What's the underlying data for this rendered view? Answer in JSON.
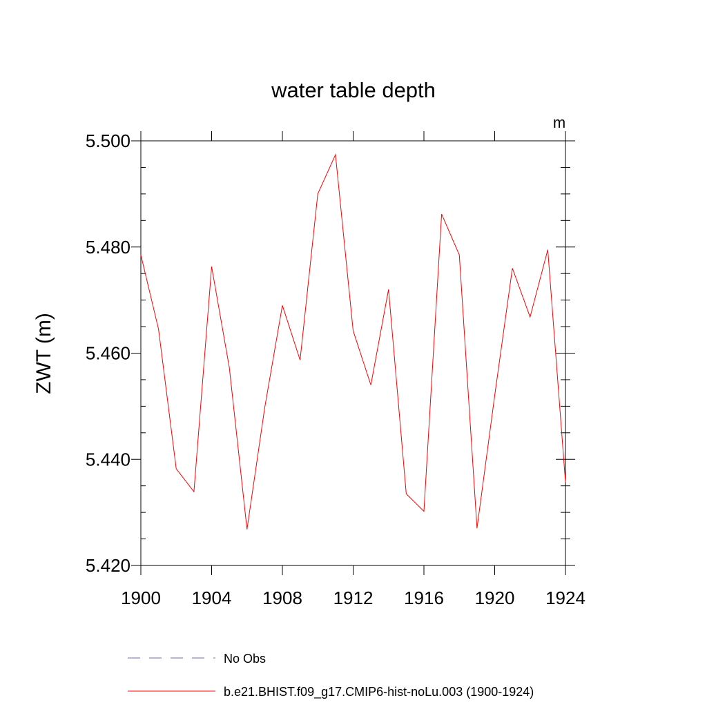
{
  "chart_data": {
    "type": "line",
    "title": "water table depth",
    "units_label": "m",
    "xlabel": "",
    "ylabel": "ZWT  (m)",
    "xlim": [
      1900,
      1924
    ],
    "ylim": [
      5.42,
      5.5
    ],
    "x_major_ticks": [
      1900,
      1904,
      1908,
      1912,
      1916,
      1920,
      1924
    ],
    "x_tick_labels": [
      "1900",
      "1904",
      "1908",
      "1912",
      "1916",
      "1920",
      "1924"
    ],
    "y_major_ticks": [
      5.42,
      5.44,
      5.46,
      5.48,
      5.5
    ],
    "y_tick_labels": [
      "5.420",
      "5.440",
      "5.460",
      "5.480",
      "5.500"
    ],
    "grid": false,
    "legend_position": "bottom",
    "series": [
      {
        "name": "b.e21.BHIST.f09_g17.CMIP6-hist-noLu.003 (1900-1924)",
        "color": "#ff0000",
        "dash": "solid",
        "x": [
          1900,
          1901,
          1902,
          1903,
          1904,
          1905,
          1906,
          1907,
          1908,
          1909,
          1910,
          1911,
          1912,
          1913,
          1914,
          1915,
          1916,
          1917,
          1918,
          1919,
          1920,
          1921,
          1922,
          1923,
          1924
        ],
        "values": [
          5.4785,
          5.4645,
          5.4382,
          5.4339,
          5.4763,
          5.4573,
          5.4268,
          5.4497,
          5.469,
          5.4587,
          5.49,
          5.4974,
          5.4642,
          5.454,
          5.472,
          5.4335,
          5.4302,
          5.4862,
          5.4785,
          5.427,
          5.452,
          5.476,
          5.4668,
          5.4795,
          5.4357
        ]
      }
    ],
    "legend": [
      {
        "label": "No Obs",
        "color": "#6b6bb5",
        "dash": "dashed"
      },
      {
        "label": "b.e21.BHIST.f09_g17.CMIP6-hist-noLu.003 (1900-1924)",
        "color": "#ff0000",
        "dash": "solid"
      }
    ]
  }
}
